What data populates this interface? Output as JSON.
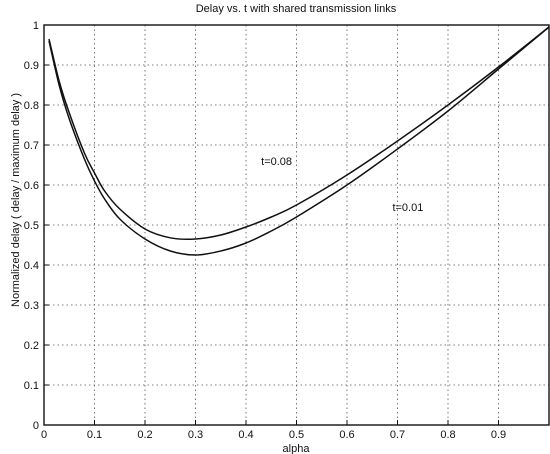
{
  "chart_data": {
    "type": "line",
    "title": "Delay vs. t with shared transmission links",
    "xlabel": "alpha",
    "ylabel": "Normalized delay ( delay / maximum delay )",
    "xlim": [
      0,
      1
    ],
    "ylim": [
      0,
      1
    ],
    "grid": true,
    "xticks": [
      0,
      0.1,
      0.2,
      0.3,
      0.4,
      0.5,
      0.6,
      0.7,
      0.8,
      0.9
    ],
    "xtick_labels": [
      "0",
      "0.1",
      "0.2",
      "0.3",
      "0.4",
      "0.5",
      "0.6",
      "0.7",
      "0.8",
      "0.9"
    ],
    "yticks": [
      0,
      0.1,
      0.2,
      0.3,
      0.4,
      0.5,
      0.6,
      0.7,
      0.8,
      0.9,
      1
    ],
    "ytick_labels": [
      "0",
      "0.1",
      "0.2",
      "0.3",
      "0.4",
      "0.5",
      "0.6",
      "0.7",
      "0.8",
      "0.9",
      "1"
    ],
    "series": [
      {
        "name": "t=0.08",
        "x": [
          0.01,
          0.03,
          0.05,
          0.08,
          0.1,
          0.12,
          0.15,
          0.2,
          0.25,
          0.3,
          0.35,
          0.4,
          0.45,
          0.5,
          0.6,
          0.7,
          0.8,
          0.9,
          1.0
        ],
        "y": [
          0.965,
          0.86,
          0.78,
          0.68,
          0.63,
          0.585,
          0.54,
          0.49,
          0.468,
          0.465,
          0.475,
          0.495,
          0.52,
          0.55,
          0.625,
          0.71,
          0.8,
          0.895,
          0.995
        ]
      },
      {
        "name": "t=0.01",
        "x": [
          0.01,
          0.03,
          0.05,
          0.08,
          0.1,
          0.12,
          0.15,
          0.2,
          0.25,
          0.3,
          0.35,
          0.4,
          0.45,
          0.5,
          0.6,
          0.7,
          0.8,
          0.9,
          1.0
        ],
        "y": [
          0.96,
          0.85,
          0.765,
          0.665,
          0.61,
          0.565,
          0.515,
          0.465,
          0.435,
          0.425,
          0.435,
          0.455,
          0.485,
          0.52,
          0.6,
          0.69,
          0.785,
          0.89,
          0.995
        ]
      }
    ],
    "annotations": [
      {
        "text": "t=0.08",
        "x": 0.43,
        "y": 0.65
      },
      {
        "text": "t=0.01",
        "x": 0.69,
        "y": 0.535
      }
    ]
  }
}
